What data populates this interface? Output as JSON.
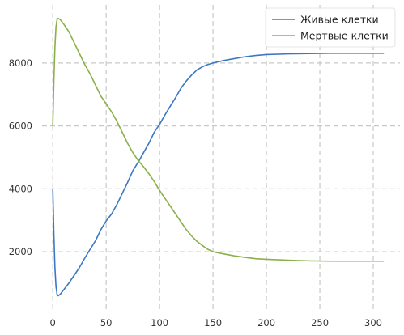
{
  "chart_data": {
    "type": "line",
    "x_ticks": [
      0,
      50,
      100,
      150,
      200,
      250,
      300
    ],
    "y_ticks": [
      2000,
      4000,
      6000,
      8000
    ],
    "xlim": [
      -10,
      325
    ],
    "ylim": [
      150,
      9850
    ],
    "grid": true,
    "legend_position": "top-right",
    "series": [
      {
        "name": "Живые клетки",
        "color": "#3a78c4",
        "points": [
          [
            0,
            4000
          ],
          [
            1,
            2600
          ],
          [
            2,
            1500
          ],
          [
            3,
            900
          ],
          [
            4,
            650
          ],
          [
            5,
            600
          ],
          [
            7,
            650
          ],
          [
            10,
            780
          ],
          [
            15,
            1000
          ],
          [
            20,
            1250
          ],
          [
            25,
            1500
          ],
          [
            30,
            1800
          ],
          [
            35,
            2080
          ],
          [
            40,
            2350
          ],
          [
            45,
            2700
          ],
          [
            50,
            2980
          ],
          [
            55,
            3200
          ],
          [
            60,
            3500
          ],
          [
            65,
            3850
          ],
          [
            70,
            4200
          ],
          [
            75,
            4580
          ],
          [
            80,
            4850
          ],
          [
            85,
            5150
          ],
          [
            90,
            5450
          ],
          [
            95,
            5800
          ],
          [
            100,
            6050
          ],
          [
            105,
            6350
          ],
          [
            110,
            6630
          ],
          [
            115,
            6900
          ],
          [
            120,
            7200
          ],
          [
            125,
            7430
          ],
          [
            130,
            7620
          ],
          [
            135,
            7780
          ],
          [
            140,
            7880
          ],
          [
            145,
            7950
          ],
          [
            150,
            8000
          ],
          [
            160,
            8080
          ],
          [
            170,
            8140
          ],
          [
            180,
            8200
          ],
          [
            190,
            8240
          ],
          [
            200,
            8270
          ],
          [
            220,
            8290
          ],
          [
            240,
            8300
          ],
          [
            260,
            8310
          ],
          [
            280,
            8310
          ],
          [
            300,
            8310
          ],
          [
            310,
            8310
          ]
        ]
      },
      {
        "name": "Мертвые клетки",
        "color": "#8ab04a",
        "points": [
          [
            0,
            6000
          ],
          [
            1,
            7400
          ],
          [
            2,
            8500
          ],
          [
            3,
            9150
          ],
          [
            4,
            9380
          ],
          [
            5,
            9420
          ],
          [
            7,
            9380
          ],
          [
            10,
            9250
          ],
          [
            15,
            9000
          ],
          [
            20,
            8650
          ],
          [
            25,
            8300
          ],
          [
            30,
            7950
          ],
          [
            35,
            7650
          ],
          [
            40,
            7300
          ],
          [
            45,
            6950
          ],
          [
            50,
            6700
          ],
          [
            55,
            6450
          ],
          [
            60,
            6150
          ],
          [
            65,
            5800
          ],
          [
            70,
            5450
          ],
          [
            75,
            5150
          ],
          [
            80,
            4900
          ],
          [
            85,
            4700
          ],
          [
            90,
            4480
          ],
          [
            95,
            4230
          ],
          [
            100,
            3950
          ],
          [
            105,
            3700
          ],
          [
            110,
            3450
          ],
          [
            115,
            3200
          ],
          [
            120,
            2950
          ],
          [
            125,
            2700
          ],
          [
            130,
            2500
          ],
          [
            135,
            2330
          ],
          [
            140,
            2200
          ],
          [
            145,
            2080
          ],
          [
            150,
            2000
          ],
          [
            160,
            1930
          ],
          [
            170,
            1870
          ],
          [
            180,
            1820
          ],
          [
            190,
            1780
          ],
          [
            200,
            1760
          ],
          [
            220,
            1730
          ],
          [
            240,
            1710
          ],
          [
            260,
            1700
          ],
          [
            280,
            1700
          ],
          [
            300,
            1700
          ],
          [
            310,
            1700
          ]
        ]
      }
    ]
  }
}
